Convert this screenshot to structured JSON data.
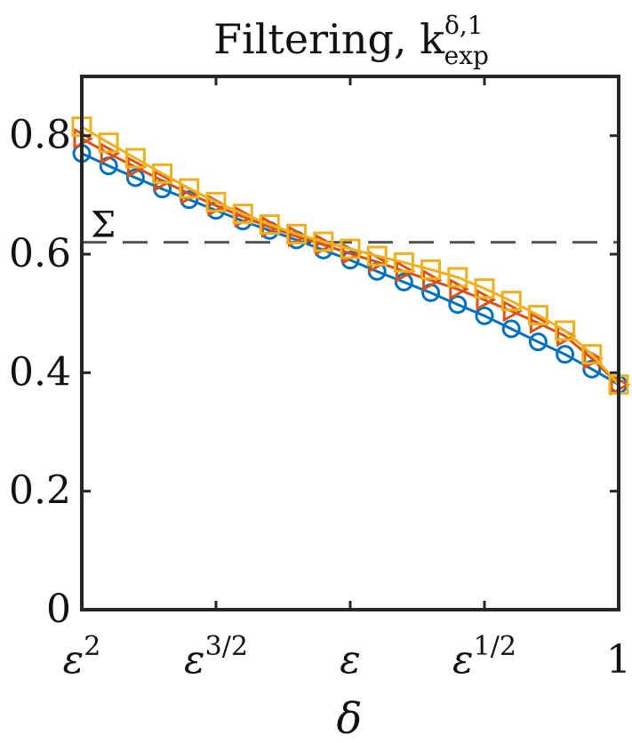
{
  "chart_data": {
    "type": "line",
    "title": "Filtering, k",
    "title_superscript": "δ,1",
    "title_subscript": "exp",
    "xlabel": "δ",
    "ylabel": "",
    "x_scale": "log-epsilon",
    "x_ticks": [
      "ε",
      "ε",
      "ε",
      "ε",
      "1"
    ],
    "x_tick_exponents": [
      "2",
      "3/2",
      "",
      "1/2",
      ""
    ],
    "x_tick_positions_exponent": [
      2,
      1.5,
      1,
      0.5,
      0
    ],
    "xlim_exponent": [
      2,
      0
    ],
    "ylim": [
      0,
      0.9
    ],
    "y_ticks": [
      "0",
      "0.2",
      "0.4",
      "0.6",
      "0.8"
    ],
    "y_tick_values": [
      0,
      0.2,
      0.4,
      0.6,
      0.8
    ],
    "grid": false,
    "legend": "none",
    "reference_line": {
      "label": "Σ",
      "y": 0.62,
      "color": "#555555"
    },
    "x_exponent": [
      2.0,
      1.9,
      1.8,
      1.7,
      1.6,
      1.5,
      1.4,
      1.3,
      1.2,
      1.1,
      1.0,
      0.9,
      0.8,
      0.7,
      0.6,
      0.5,
      0.4,
      0.3,
      0.2,
      0.1,
      0.0
    ],
    "series": [
      {
        "marker": "circle",
        "color": "#0072BD",
        "values": [
          0.77,
          0.749,
          0.729,
          0.71,
          0.692,
          0.674,
          0.656,
          0.64,
          0.624,
          0.607,
          0.59,
          0.571,
          0.553,
          0.535,
          0.515,
          0.496,
          0.474,
          0.452,
          0.431,
          0.406,
          0.38
        ]
      },
      {
        "marker": "triangle-right",
        "color": "#D95319",
        "values": [
          0.795,
          0.77,
          0.747,
          0.724,
          0.702,
          0.682,
          0.663,
          0.646,
          0.63,
          0.616,
          0.601,
          0.587,
          0.571,
          0.556,
          0.541,
          0.523,
          0.504,
          0.484,
          0.462,
          0.424,
          0.38
        ]
      },
      {
        "marker": "square",
        "color": "#EDB120",
        "values": [
          0.815,
          0.788,
          0.762,
          0.736,
          0.711,
          0.688,
          0.668,
          0.65,
          0.634,
          0.621,
          0.609,
          0.597,
          0.586,
          0.574,
          0.561,
          0.542,
          0.521,
          0.497,
          0.471,
          0.431,
          0.38
        ]
      }
    ]
  }
}
